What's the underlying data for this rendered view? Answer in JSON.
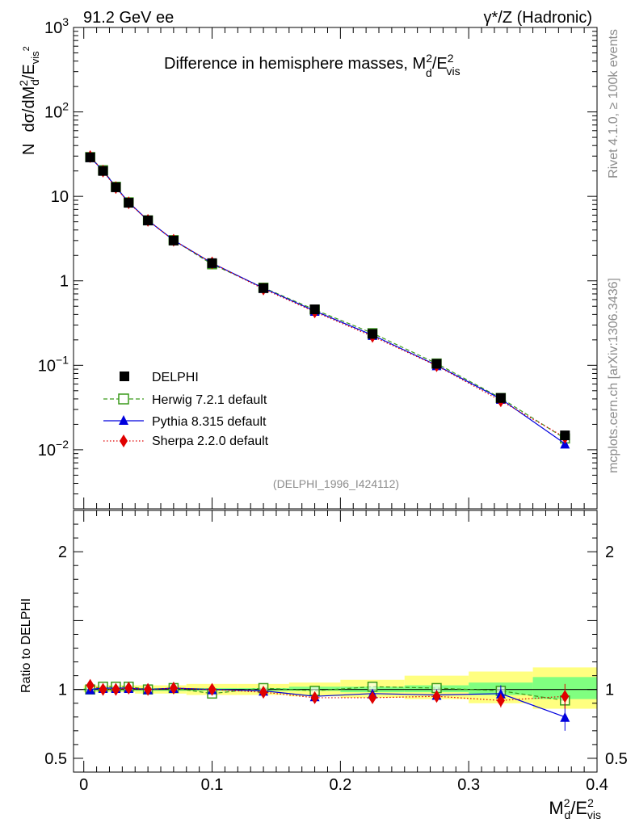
{
  "chart_data": {
    "type": "line",
    "title": "Difference in hemisphere masses, M",
    "title_sup": "2",
    "title_sub": "d",
    "title_tail": "/E",
    "title_tail_sup": "2",
    "title_tail_sub": "vis",
    "top_left_label": "91.2 GeV ee",
    "top_right_label": "γ*/Z (Hadronic)",
    "side_label_top": "Rivet 4.1.0, ≥ 100k events",
    "side_label_bottom": "mcplots.cern.ch [arXiv:1306.3436]",
    "analysis_label": "(DELPHI_1996_I424112)",
    "ylabel_main": {
      "prefix": "N",
      "a": "dσ/dM",
      "a_sup": "2",
      "a_sub": "d",
      "b": "/E",
      "b_sub": "vis",
      "b_sup": "2"
    },
    "ylabel_ratio": "Ratio to DELPHI",
    "xlabel": {
      "a": "M",
      "a_sup": "2",
      "a_sub": "d",
      "b": "/E",
      "b_sup": "2",
      "b_sub": "vis"
    },
    "xlim": [
      -0.008,
      0.4
    ],
    "ylim_main": [
      0.002,
      1000
    ],
    "ylim_ratio": [
      0.4,
      2.3
    ],
    "x_ticks": [
      0,
      0.1,
      0.2,
      0.3,
      0.4
    ],
    "x_tick_labels": [
      "0",
      "0.1",
      "0.2",
      "0.3",
      "0.4"
    ],
    "y_main_ticks": [
      {
        "v": 1000,
        "base": "10",
        "exp": "3"
      },
      {
        "v": 100,
        "base": "10",
        "exp": "2"
      },
      {
        "v": 10,
        "base": "10",
        "exp": ""
      },
      {
        "v": 1,
        "base": "1",
        "exp": ""
      },
      {
        "v": 0.1,
        "base": "10",
        "exp": "−1"
      },
      {
        "v": 0.01,
        "base": "10",
        "exp": "−2"
      }
    ],
    "y_ratio_ticks": [
      {
        "v": 2,
        "label": "2"
      },
      {
        "v": 1,
        "label": "1"
      },
      {
        "v": 0.5,
        "label": "0.5"
      }
    ],
    "x": [
      0.005,
      0.015,
      0.025,
      0.035,
      0.05,
      0.07,
      0.1,
      0.14,
      0.18,
      0.225,
      0.275,
      0.325,
      0.375
    ],
    "bins": [
      [
        0,
        0.01
      ],
      [
        0.01,
        0.02
      ],
      [
        0.02,
        0.03
      ],
      [
        0.03,
        0.04
      ],
      [
        0.04,
        0.06
      ],
      [
        0.06,
        0.08
      ],
      [
        0.08,
        0.12
      ],
      [
        0.12,
        0.16
      ],
      [
        0.16,
        0.2
      ],
      [
        0.2,
        0.25
      ],
      [
        0.25,
        0.3
      ],
      [
        0.3,
        0.35
      ],
      [
        0.35,
        0.4
      ]
    ],
    "band_yellow": [
      [
        0.98,
        1.03
      ],
      [
        0.98,
        1.03
      ],
      [
        0.98,
        1.03
      ],
      [
        0.98,
        1.03
      ],
      [
        0.97,
        1.03
      ],
      [
        0.97,
        1.03
      ],
      [
        0.96,
        1.04
      ],
      [
        0.96,
        1.04
      ],
      [
        0.95,
        1.05
      ],
      [
        0.94,
        1.07
      ],
      [
        0.93,
        1.1
      ],
      [
        0.9,
        1.13
      ],
      [
        0.86,
        1.16
      ]
    ],
    "band_green": [
      [
        0.99,
        1.01
      ],
      [
        0.99,
        1.01
      ],
      [
        0.99,
        1.01
      ],
      [
        0.99,
        1.01
      ],
      [
        0.99,
        1.01
      ],
      [
        0.99,
        1.01
      ],
      [
        0.99,
        1.01
      ],
      [
        0.99,
        1.01
      ],
      [
        0.99,
        1.02
      ],
      [
        0.98,
        1.02
      ],
      [
        0.98,
        1.03
      ],
      [
        0.96,
        1.05
      ],
      [
        0.93,
        1.09
      ]
    ],
    "series": [
      {
        "name": "DELPHI",
        "marker": "square-filled",
        "color": "#000000",
        "line": "none",
        "values": [
          29,
          20,
          12.8,
          8.4,
          5.2,
          3.0,
          1.62,
          0.82,
          0.46,
          0.235,
          0.104,
          0.041,
          0.0148
        ],
        "ratio": [
          1,
          1,
          1,
          1,
          1,
          1,
          1,
          1,
          1,
          1,
          1,
          1,
          1
        ]
      },
      {
        "name": "Herwig 7.2.1 default",
        "marker": "square-open",
        "color": "#3a9a1b",
        "line": "dashed",
        "values": [
          29.2,
          20.4,
          13.0,
          8.5,
          5.2,
          3.03,
          1.57,
          0.83,
          0.455,
          0.24,
          0.105,
          0.041,
          0.0136
        ],
        "ratio": [
          1.0,
          1.02,
          1.02,
          1.02,
          1.0,
          1.01,
          0.97,
          1.01,
          0.99,
          1.02,
          1.01,
          0.99,
          0.92
        ]
      },
      {
        "name": "Pythia 8.315 default",
        "marker": "triangle",
        "color": "#0000dd",
        "line": "solid",
        "values": [
          29.0,
          20.2,
          12.9,
          8.5,
          5.2,
          3.03,
          1.62,
          0.82,
          0.44,
          0.228,
          0.1,
          0.04,
          0.0118
        ],
        "ratio": [
          1.0,
          1.01,
          1.01,
          1.01,
          1.0,
          1.01,
          1.0,
          0.99,
          0.95,
          0.97,
          0.96,
          0.97,
          0.8
        ],
        "ratio_err": [
          0,
          0,
          0,
          0,
          0,
          0,
          0,
          0,
          0,
          0,
          0.04,
          0.06,
          0.1
        ]
      },
      {
        "name": "Sherpa 2.2.0 default",
        "marker": "diamond",
        "color": "#e00000",
        "line": "dotted",
        "values": [
          29.6,
          19.9,
          12.7,
          8.4,
          5.2,
          3.02,
          1.63,
          0.8,
          0.43,
          0.22,
          0.099,
          0.038,
          0.014
        ],
        "ratio": [
          1.03,
          1.0,
          1.0,
          1.01,
          1.0,
          1.01,
          1.0,
          0.98,
          0.94,
          0.94,
          0.95,
          0.92,
          0.95
        ],
        "ratio_err": [
          0,
          0,
          0,
          0,
          0,
          0,
          0,
          0,
          0,
          0,
          0.03,
          0.05,
          0.09
        ]
      }
    ]
  }
}
